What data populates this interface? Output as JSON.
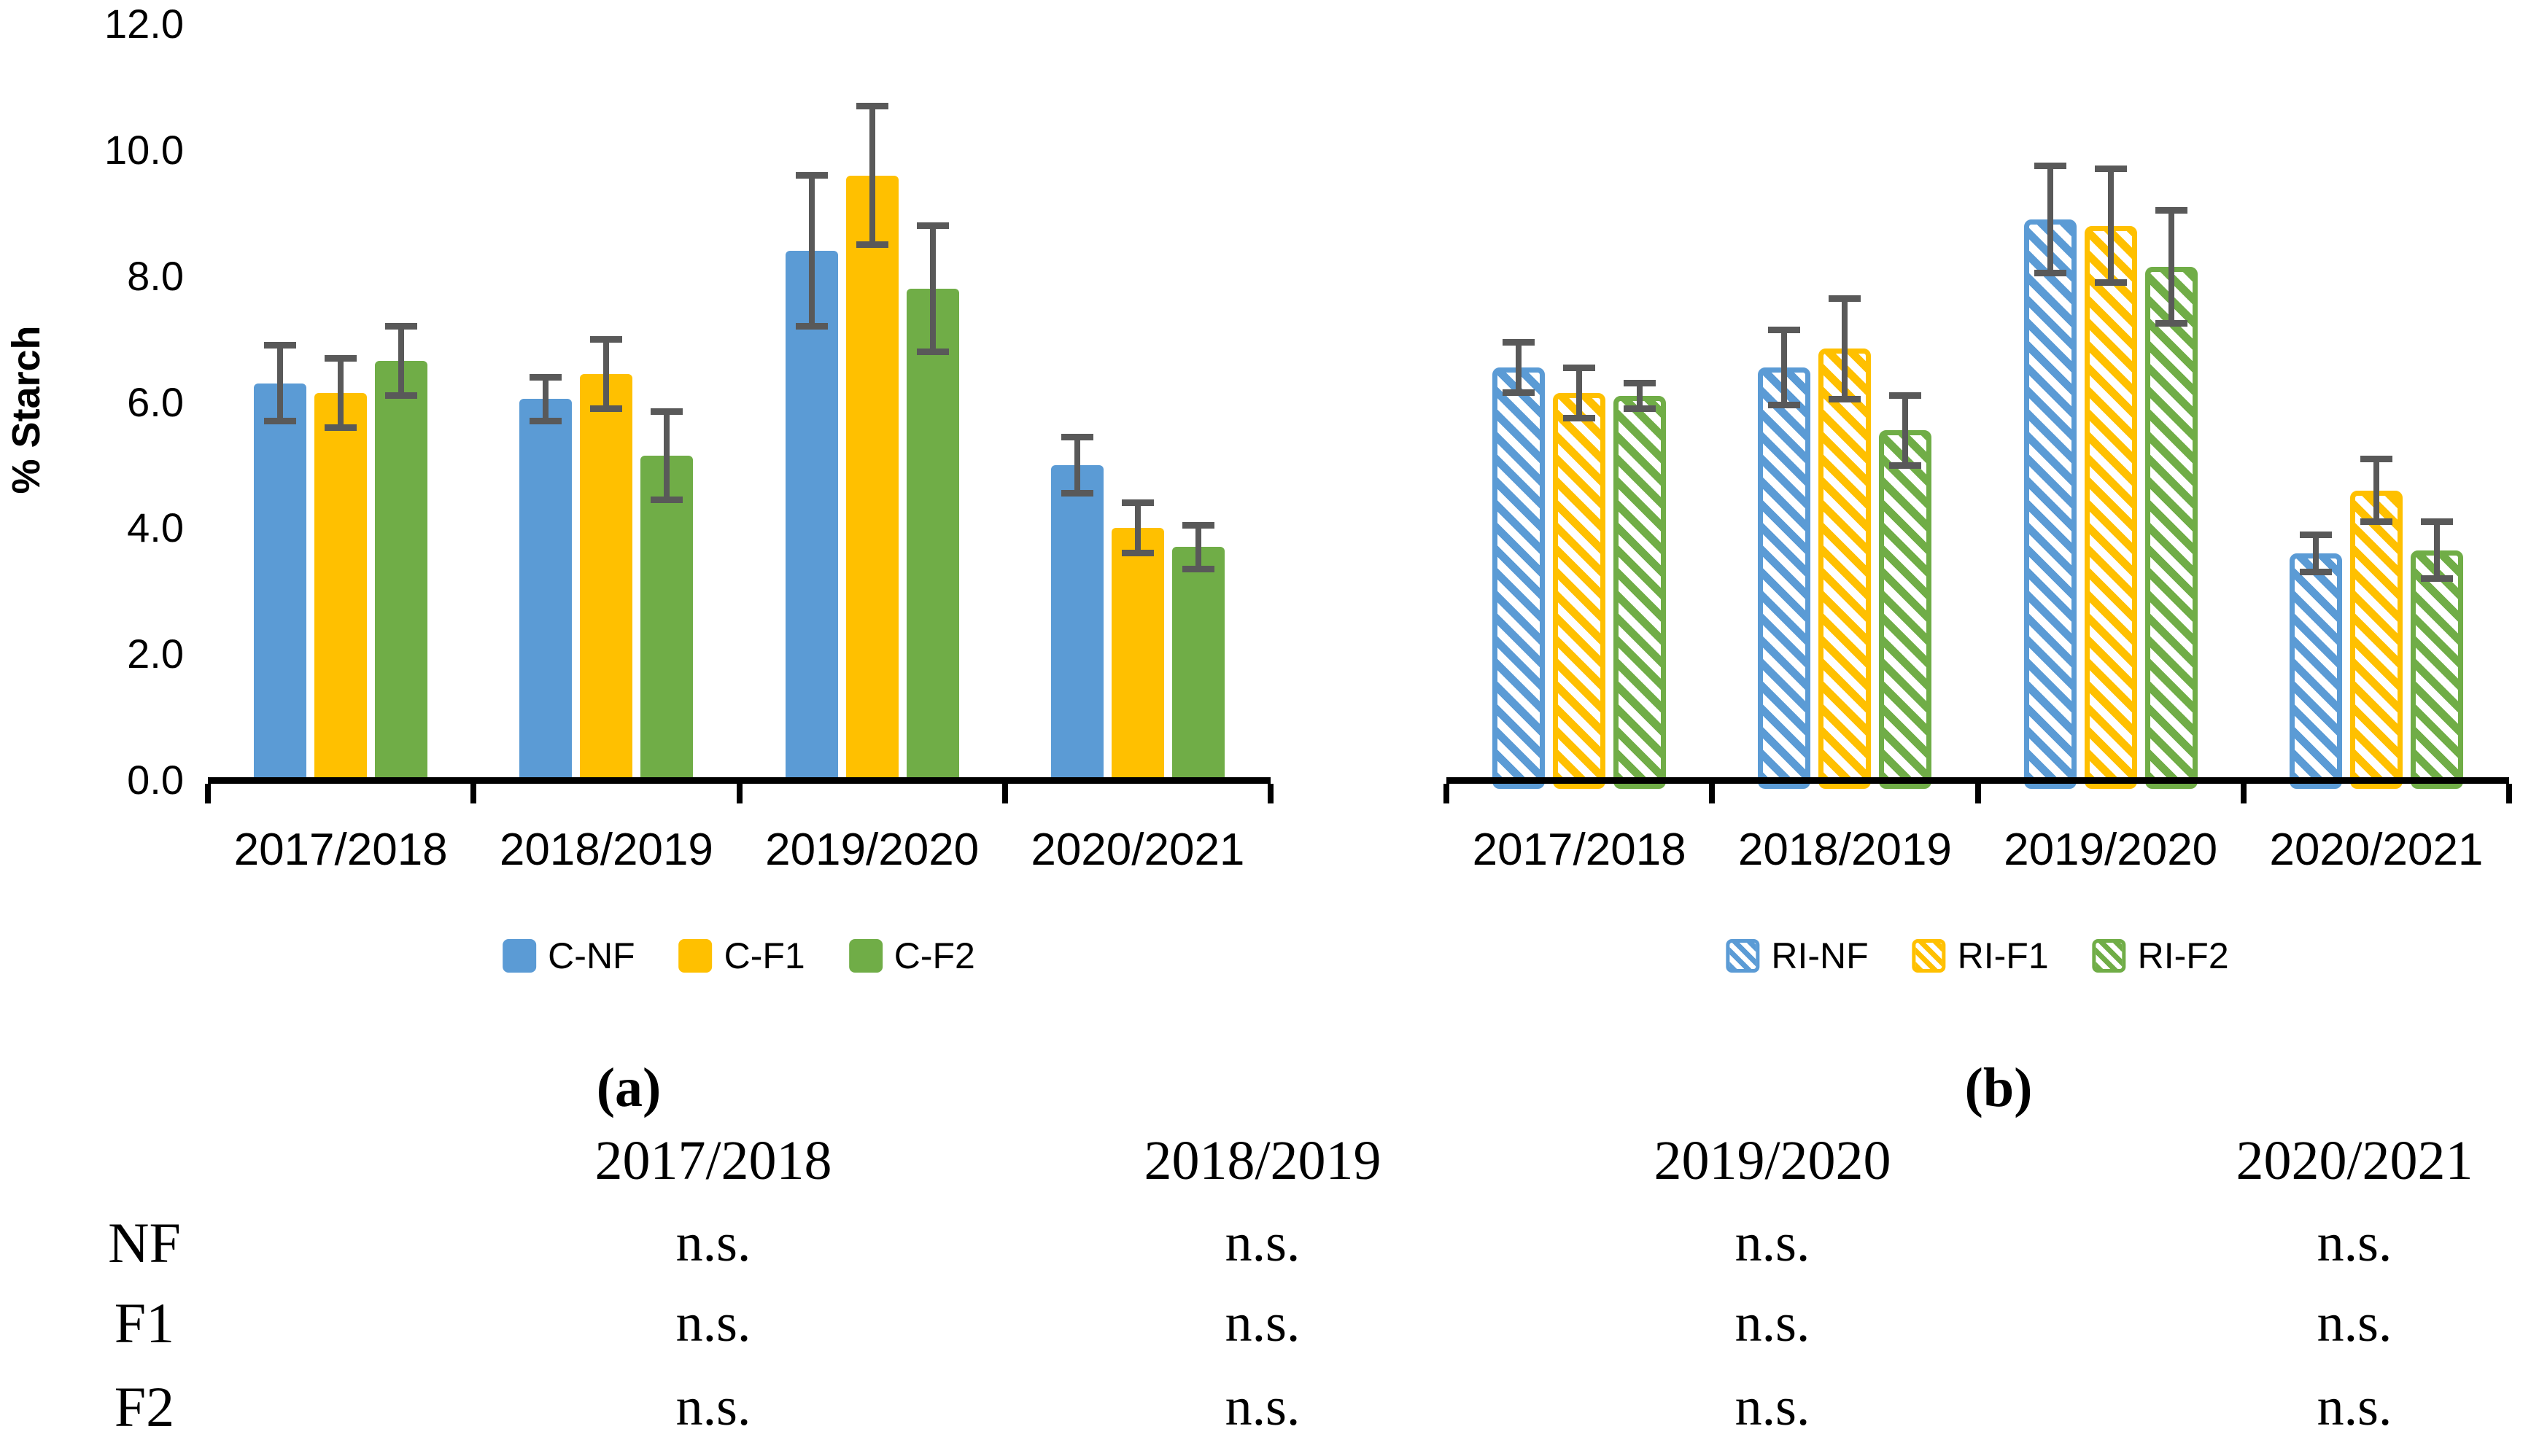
{
  "figure": {
    "ylabel": "% Starch",
    "ytick_values": [
      0,
      2,
      4,
      6,
      8,
      10,
      12
    ],
    "ytick_labels": [
      "0.0",
      "2.0",
      "4.0",
      "6.0",
      "8.0",
      "10.0",
      "12.0"
    ],
    "ylim": [
      0,
      12
    ],
    "error_bar_color": "#595959",
    "axis_color": "#000000"
  },
  "chart_data": [
    {
      "id": "a",
      "type": "bar",
      "caption": "(a)",
      "categories": [
        "2017/2018",
        "2018/2019",
        "2019/2020",
        "2020/2021"
      ],
      "ylabel": "% Starch",
      "ylim": [
        0,
        12
      ],
      "grid": false,
      "legend_position": "bottom",
      "hatched": false,
      "series": [
        {
          "name": "C-NF",
          "color": "#5B9BD5",
          "values": [
            6.3,
            6.05,
            8.4,
            5.0
          ],
          "errors": [
            0.6,
            0.35,
            1.2,
            0.45
          ]
        },
        {
          "name": "C-F1",
          "color": "#FFC000",
          "values": [
            6.15,
            6.45,
            9.6,
            4.0
          ],
          "errors": [
            0.55,
            0.55,
            1.1,
            0.4
          ]
        },
        {
          "name": "C-F2",
          "color": "#70AD47",
          "values": [
            6.65,
            5.15,
            7.8,
            3.7
          ],
          "errors": [
            0.55,
            0.7,
            1.0,
            0.35
          ]
        }
      ]
    },
    {
      "id": "b",
      "type": "bar",
      "caption": "(b)",
      "categories": [
        "2017/2018",
        "2018/2019",
        "2019/2020",
        "2020/2021"
      ],
      "ylabel": "",
      "ylim": [
        0,
        12
      ],
      "grid": false,
      "legend_position": "bottom",
      "hatched": true,
      "series": [
        {
          "name": "RI-NF",
          "color": "#5B9BD5",
          "values": [
            6.55,
            6.55,
            8.9,
            3.6
          ],
          "errors": [
            0.4,
            0.6,
            0.85,
            0.3
          ]
        },
        {
          "name": "RI-F1",
          "color": "#FFC000",
          "values": [
            6.15,
            6.85,
            8.8,
            4.6
          ],
          "errors": [
            0.4,
            0.8,
            0.9,
            0.5
          ]
        },
        {
          "name": "RI-F2",
          "color": "#70AD47",
          "values": [
            6.1,
            5.55,
            8.15,
            3.65
          ],
          "errors": [
            0.2,
            0.55,
            0.9,
            0.45
          ]
        }
      ]
    }
  ],
  "table": {
    "columns": [
      "2017/2018",
      "2018/2019",
      "2019/2020",
      "2020/2021"
    ],
    "rows": [
      {
        "label": "NF",
        "cells": [
          "n.s.",
          "n.s.",
          "n.s.",
          "n.s."
        ]
      },
      {
        "label": "F1",
        "cells": [
          "n.s.",
          "n.s.",
          "n.s.",
          "n.s."
        ]
      },
      {
        "label": "F2",
        "cells": [
          "n.s.",
          "n.s.",
          "n.s.",
          "n.s."
        ]
      }
    ]
  }
}
